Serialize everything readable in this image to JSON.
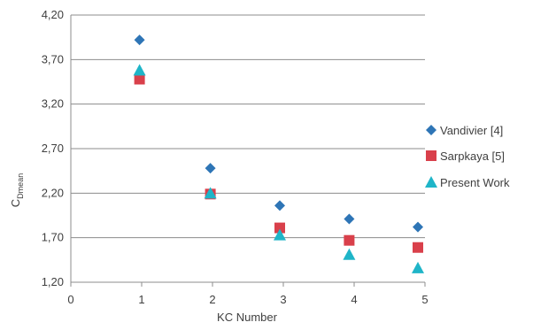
{
  "chart_data": {
    "type": "scatter",
    "title": "",
    "xlabel": "KC Number",
    "ylabel_main": "C",
    "ylabel_sub": "Dmean",
    "xlim": [
      0,
      5
    ],
    "ylim": [
      1.2,
      4.2
    ],
    "x_ticks": [
      "0",
      "1",
      "2",
      "3",
      "4",
      "5"
    ],
    "x_tick_values": [
      0,
      1,
      2,
      3,
      4,
      5
    ],
    "y_ticks": [
      "1,20",
      "1,70",
      "2,20",
      "2,70",
      "3,20",
      "3,70",
      "4,20"
    ],
    "y_tick_values": [
      1.2,
      1.7,
      2.2,
      2.7,
      3.2,
      3.7,
      4.2
    ],
    "grid": "horizontal",
    "legend_position": "right",
    "series": [
      {
        "name": "Vandivier [4]",
        "marker": "diamond",
        "color": "#2e75b6",
        "x": [
          0.97,
          1.97,
          2.95,
          3.93,
          4.9
        ],
        "y": [
          3.92,
          2.48,
          2.06,
          1.91,
          1.82
        ]
      },
      {
        "name": "Sarpkaya [5]",
        "marker": "square",
        "color": "#d9404b",
        "x": [
          0.97,
          1.97,
          2.95,
          3.93,
          4.9
        ],
        "y": [
          3.48,
          2.19,
          1.81,
          1.67,
          1.59
        ]
      },
      {
        "name": "Present Work",
        "marker": "triangle",
        "color": "#1fb5c8",
        "x": [
          0.97,
          1.97,
          2.95,
          3.93,
          4.9
        ],
        "y": [
          3.58,
          2.2,
          1.73,
          1.51,
          1.36
        ]
      }
    ]
  }
}
